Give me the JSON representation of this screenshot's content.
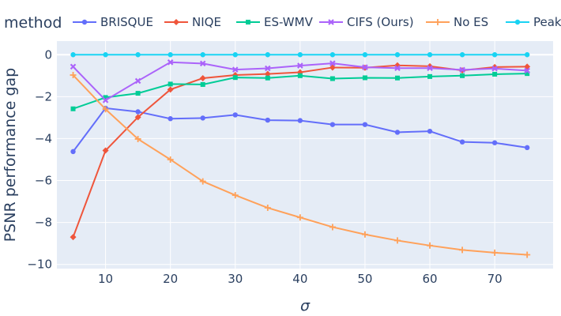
{
  "chart_data": {
    "type": "line",
    "legend_title": "method",
    "legend_placement": "top-horizontal",
    "xlabel": "σ",
    "ylabel": "PSNR performance gap",
    "xlim": [
      2.5,
      79
    ],
    "ylim": [
      -10.2,
      0.65
    ],
    "xticks": [
      10,
      20,
      30,
      40,
      50,
      60,
      70
    ],
    "yticks": [
      0,
      -2,
      -4,
      -6,
      -8,
      -10
    ],
    "x": [
      5,
      10,
      15,
      20,
      25,
      30,
      35,
      40,
      45,
      50,
      55,
      60,
      65,
      70,
      75
    ],
    "grid": true,
    "series": [
      {
        "name": "BRISQUE",
        "color": "#636efa",
        "marker": "circle",
        "values": [
          -4.62,
          -2.55,
          -2.72,
          -3.05,
          -3.02,
          -2.87,
          -3.12,
          -3.14,
          -3.33,
          -3.33,
          -3.7,
          -3.65,
          -4.16,
          -4.2,
          -4.43
        ]
      },
      {
        "name": "NIQE",
        "color": "#ef553b",
        "marker": "diamond",
        "values": [
          -8.7,
          -4.57,
          -2.98,
          -1.66,
          -1.12,
          -0.97,
          -0.92,
          -0.84,
          -0.61,
          -0.62,
          -0.51,
          -0.55,
          -0.75,
          -0.59,
          -0.57
        ]
      },
      {
        "name": "ES-WMV",
        "color": "#00cc96",
        "marker": "square",
        "values": [
          -2.58,
          -2.04,
          -1.84,
          -1.4,
          -1.42,
          -1.09,
          -1.11,
          -1.0,
          -1.14,
          -1.1,
          -1.11,
          -1.04,
          -1.0,
          -0.93,
          -0.9
        ]
      },
      {
        "name": "CIFS (Ours)",
        "color": "#ab63fa",
        "marker": "x",
        "values": [
          -0.57,
          -2.17,
          -1.25,
          -0.36,
          -0.42,
          -0.71,
          -0.65,
          -0.52,
          -0.41,
          -0.6,
          -0.64,
          -0.64,
          -0.72,
          -0.66,
          -0.76
        ]
      },
      {
        "name": "No ES",
        "color": "#ffa15a",
        "marker": "cross",
        "values": [
          -0.97,
          -2.6,
          -4.02,
          -5.0,
          -6.04,
          -6.7,
          -7.3,
          -7.76,
          -8.22,
          -8.57,
          -8.86,
          -9.1,
          -9.31,
          -9.44,
          -9.54
        ]
      },
      {
        "name": "Peak",
        "color": "#19d3f3",
        "marker": "circle",
        "values": [
          0,
          0,
          0,
          0,
          0,
          0,
          0,
          0,
          0,
          0,
          0,
          0,
          0,
          0,
          0
        ]
      }
    ]
  }
}
